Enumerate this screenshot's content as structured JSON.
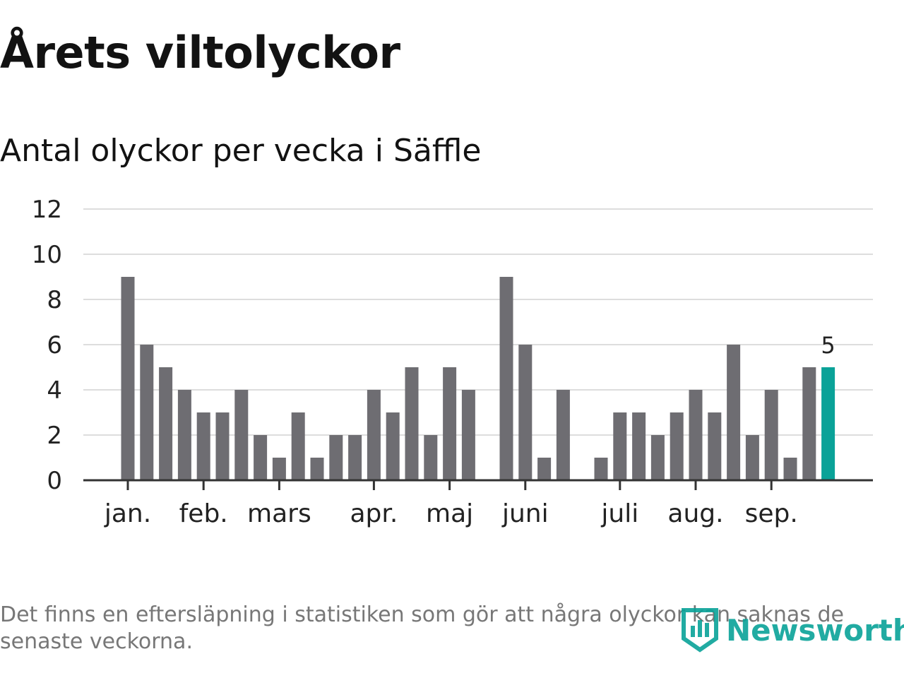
{
  "title": "Årets viltolyckor",
  "subtitle": "Antal olyckor per vecka i Säffle",
  "footnote": {
    "line1": "Det finns en eftersläpning i statistiken som gör att några olyckor kan saknas de",
    "line2": "senaste veckorna."
  },
  "brand": "Newsworthy",
  "colors": {
    "bar": "#6e6d72",
    "highlight": "#0aa298",
    "grid": "#dddddd",
    "axis": "#333333"
  },
  "chart_data": {
    "type": "bar",
    "title": "Antal olyckor per vecka i Säffle",
    "xlabel": "",
    "ylabel": "",
    "ylim": [
      0,
      12
    ],
    "yticks": [
      "0",
      "2",
      "4",
      "6",
      "8",
      "10",
      "12"
    ],
    "month_labels": [
      {
        "label": "jan.",
        "week": 1
      },
      {
        "label": "feb.",
        "week": 5
      },
      {
        "label": "mars",
        "week": 9
      },
      {
        "label": "apr.",
        "week": 14
      },
      {
        "label": "maj",
        "week": 18
      },
      {
        "label": "juni",
        "week": 22
      },
      {
        "label": "juli",
        "week": 27
      },
      {
        "label": "aug.",
        "week": 31
      },
      {
        "label": "sep.",
        "week": 35
      }
    ],
    "weeks": [
      1,
      2,
      3,
      4,
      5,
      6,
      7,
      8,
      9,
      10,
      11,
      12,
      13,
      14,
      15,
      16,
      17,
      18,
      19,
      20,
      21,
      22,
      23,
      24,
      25,
      26,
      27,
      28,
      29,
      30,
      31,
      32,
      33,
      34,
      35,
      36,
      37,
      38
    ],
    "values": [
      9,
      6,
      5,
      4,
      3,
      3,
      4,
      2,
      1,
      3,
      1,
      2,
      2,
      4,
      3,
      5,
      2,
      5,
      4,
      0,
      9,
      6,
      1,
      4,
      0,
      1,
      3,
      3,
      2,
      3,
      4,
      3,
      6,
      2,
      4,
      1,
      5,
      5
    ],
    "highlight_index": 37,
    "highlight_label": "5"
  }
}
